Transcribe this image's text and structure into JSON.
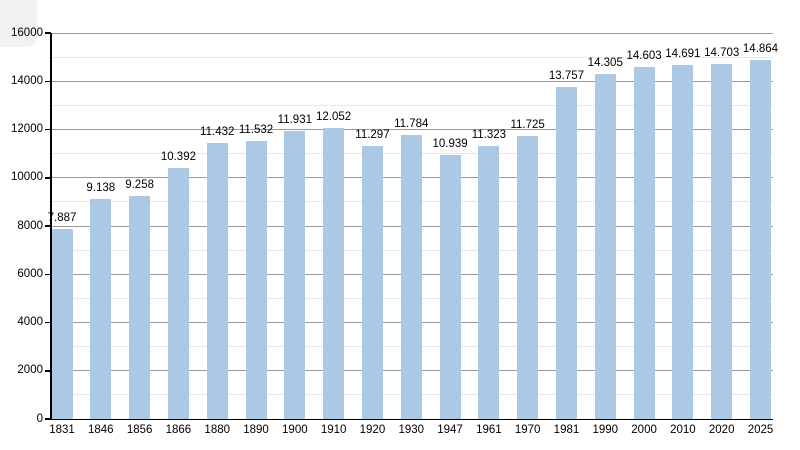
{
  "chart_data": {
    "type": "bar",
    "title": "",
    "xlabel": "",
    "ylabel": "",
    "categories": [
      "1831",
      "1846",
      "1856",
      "1866",
      "1880",
      "1890",
      "1900",
      "1910",
      "1920",
      "1930",
      "1947",
      "1961",
      "1970",
      "1981",
      "1990",
      "2000",
      "2010",
      "2020",
      "2025"
    ],
    "values": [
      7887,
      9138,
      9258,
      10392,
      11432,
      11532,
      11931,
      12052,
      11297,
      11784,
      10939,
      11323,
      11725,
      13757,
      14305,
      14603,
      14691,
      14703,
      14864
    ],
    "value_labels": [
      "7.887",
      "9.138",
      "9.258",
      "10.392",
      "11.432",
      "11.532",
      "11.931",
      "12.052",
      "11.297",
      "11.784",
      "10.939",
      "11.323",
      "11.725",
      "13.757",
      "14.305",
      "14.603",
      "14.691",
      "14.703",
      "14.864"
    ],
    "ylim": [
      0,
      16000
    ],
    "y_major_ticks": [
      0,
      2000,
      4000,
      6000,
      8000,
      10000,
      12000,
      14000,
      16000
    ],
    "y_major_tick_labels": [
      "0",
      "2000",
      "4000",
      "6000",
      "8000",
      "10000",
      "12000",
      "14000",
      "16000"
    ],
    "y_minor_step": 1000,
    "grid": "on",
    "legend": "none",
    "colors": {
      "bar_fill": "#abc8e4",
      "major_gridline": "#9a9a9a",
      "minor_gridline": "#e7e7e7",
      "axis": "#000000",
      "label_text": "#000000",
      "background": "#ffffff"
    }
  }
}
